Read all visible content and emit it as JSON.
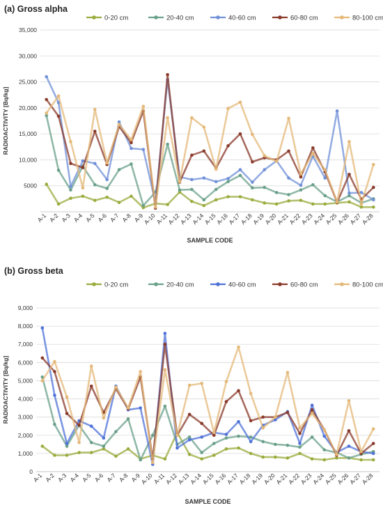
{
  "chart_data": [
    {
      "panel_title": "(a) Gross alpha",
      "type": "line",
      "xlabel": "SAMPLE CODE",
      "ylabel": "RADIOACTIVITY [Bq/kg]",
      "ylim": [
        0,
        35000
      ],
      "yticks": [
        5000,
        10000,
        15000,
        20000,
        25000,
        30000,
        35000
      ],
      "ytick_labels": [
        "5000",
        "10,000",
        "15,000",
        "20,000",
        "25,000",
        "30,000",
        "35,000"
      ],
      "grid": true,
      "legend_position": "top",
      "categories": [
        "A-1",
        "A-2",
        "A-3",
        "A-4",
        "A-5",
        "A-6",
        "A-7",
        "A-8",
        "A-9",
        "A-10",
        "A-11",
        "A-12",
        "A-13",
        "A-14",
        "A-15",
        "A-16",
        "A-17",
        "A-18",
        "A-19",
        "A-20",
        "A-21",
        "A-22",
        "A-23",
        "A-24",
        "A-25",
        "A-26",
        "A-27",
        "A-28"
      ],
      "series": [
        {
          "name": "0-20 cm",
          "color": "#9aab3c",
          "values": [
            5300,
            1500,
            2600,
            3000,
            2200,
            2800,
            1800,
            3000,
            800,
            1600,
            1400,
            3800,
            2000,
            1200,
            2300,
            2900,
            2900,
            2300,
            1700,
            1500,
            2100,
            2200,
            1500,
            1500,
            1700,
            1900,
            900,
            900
          ]
        },
        {
          "name": "20-40 cm",
          "color": "#6aa08a",
          "values": [
            18500,
            8000,
            4200,
            8800,
            5200,
            4500,
            8100,
            9200,
            1200,
            3800,
            13000,
            4200,
            4300,
            2300,
            4300,
            5800,
            7000,
            4600,
            4700,
            3700,
            3300,
            4200,
            5200,
            3100,
            1900,
            3100,
            1700,
            2500
          ]
        },
        {
          "name": "40-60 cm",
          "color": "#7090d8",
          "values": [
            26000,
            21000,
            4900,
            9800,
            9300,
            6200,
            17300,
            12200,
            12000,
            1800,
            25400,
            6700,
            6200,
            6500,
            5800,
            6400,
            8100,
            5700,
            8100,
            9800,
            6500,
            5100,
            10700,
            6500,
            19400,
            3600,
            3700,
            2300
          ]
        },
        {
          "name": "60-80 cm",
          "color": "#8a3a2a",
          "values": [
            21600,
            18400,
            9300,
            8500,
            15500,
            9100,
            16400,
            13300,
            19400,
            700,
            26400,
            5700,
            10900,
            11700,
            8400,
            12700,
            15000,
            9600,
            10400,
            10000,
            11700,
            6700,
            12300,
            7700,
            1800,
            7200,
            2400,
            4700
          ]
        },
        {
          "name": "80-100 cm",
          "color": "#e4b878",
          "values": [
            19000,
            22300,
            13500,
            4600,
            19700,
            9400,
            16800,
            13900,
            20300,
            900,
            18100,
            5800,
            18100,
            16300,
            8200,
            19900,
            21100,
            14900,
            10800,
            9700,
            18000,
            7300,
            11200,
            8100,
            1900,
            13500,
            1500,
            9100
          ]
        }
      ]
    },
    {
      "panel_title": "(b) Gross beta",
      "type": "line",
      "xlabel": "SAMPLE CODE",
      "ylabel": "RADIOACTIVITY [Bq/kg]",
      "ylim": [
        0,
        9000
      ],
      "yticks": [
        0,
        1000,
        2000,
        3000,
        4000,
        5000,
        6000,
        7000,
        8000,
        9000
      ],
      "ytick_labels": [
        "0",
        "1,000",
        "2,000",
        "3,000",
        "4,000",
        "5,000",
        "6,000",
        "7,000",
        "8,000",
        "9,000"
      ],
      "grid": true,
      "legend_position": "top",
      "categories": [
        "A-1",
        "A-2",
        "A-3",
        "A-4",
        "A-5",
        "A-6",
        "A-7",
        "A-8",
        "A-9",
        "A-10",
        "A-11",
        "A-12",
        "A-13",
        "A-14",
        "A-15",
        "A-16",
        "A-17",
        "A-18",
        "A-19",
        "A-20",
        "A-21",
        "A-22",
        "A-23",
        "A-24",
        "A-25",
        "A-26",
        "A-27",
        "A-28"
      ],
      "series": [
        {
          "name": "0-20 cm",
          "color": "#9aab3c",
          "values": [
            1400,
            900,
            900,
            1050,
            1050,
            1250,
            850,
            1250,
            700,
            900,
            700,
            2150,
            950,
            700,
            900,
            1250,
            1300,
            1000,
            800,
            800,
            750,
            1000,
            700,
            650,
            750,
            750,
            650,
            650
          ]
        },
        {
          "name": "20-40 cm",
          "color": "#6aa08a",
          "values": [
            5200,
            2600,
            1400,
            2550,
            1600,
            1400,
            2200,
            2900,
            650,
            2000,
            3600,
            1500,
            1900,
            1050,
            1550,
            1850,
            1950,
            1900,
            1650,
            1500,
            1450,
            1350,
            1900,
            1200,
            1050,
            750,
            950,
            1100
          ]
        },
        {
          "name": "40-60 cm",
          "color": "#4f72d8",
          "values": [
            7900,
            4200,
            1550,
            2800,
            2500,
            1850,
            4700,
            3400,
            3500,
            400,
            7600,
            1300,
            1750,
            1900,
            2150,
            2050,
            2750,
            1650,
            2550,
            2850,
            3300,
            1550,
            3650,
            1950,
            1050,
            1400,
            1100,
            1000
          ]
        },
        {
          "name": "60-80 cm",
          "color": "#8a3a2a",
          "values": [
            6250,
            5500,
            3200,
            2550,
            4700,
            3250,
            4550,
            3450,
            5200,
            700,
            7000,
            2000,
            3150,
            2650,
            2000,
            3850,
            4450,
            2800,
            3000,
            3000,
            3250,
            2100,
            3400,
            2300,
            900,
            2250,
            1000,
            1550
          ]
        },
        {
          "name": "80-100 cm",
          "color": "#e4b878",
          "values": [
            5000,
            6050,
            4100,
            1600,
            5800,
            2950,
            4650,
            3500,
            5500,
            500,
            5600,
            2000,
            4750,
            4850,
            2150,
            4950,
            6850,
            4300,
            2400,
            3000,
            5450,
            2400,
            3200,
            2300,
            950,
            3900,
            1100,
            2350
          ]
        }
      ]
    }
  ]
}
